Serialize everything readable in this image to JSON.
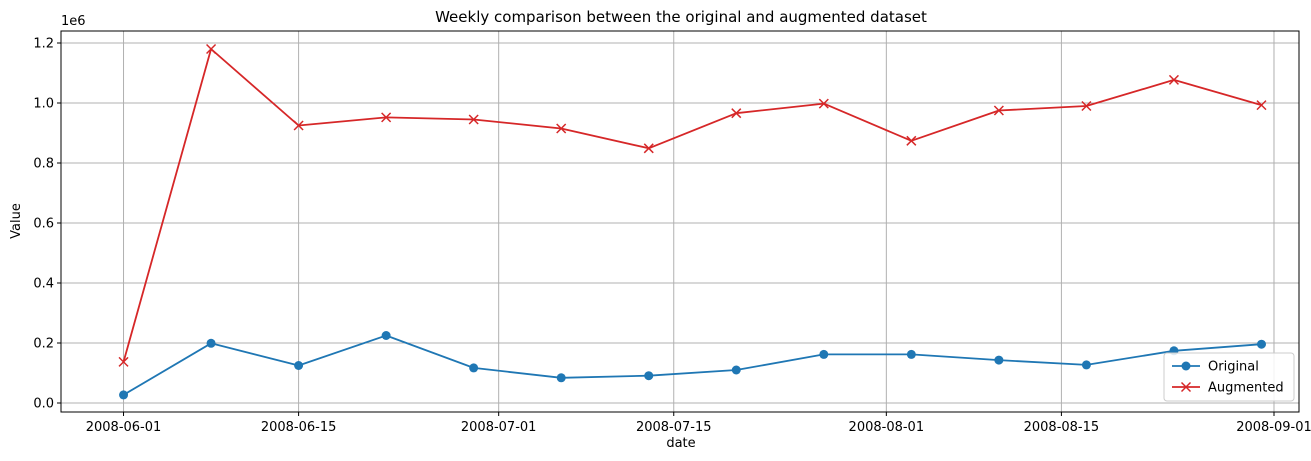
{
  "chart_data": {
    "type": "line",
    "title": "Weekly comparison between the original and augmented dataset",
    "xlabel": "date",
    "ylabel": "Value",
    "y_offset_label": "1e6",
    "xlim": [
      "2008-05-27",
      "2008-09-03"
    ],
    "ylim": [
      -0.03,
      1.24
    ],
    "grid": true,
    "legend_position": "lower-right",
    "x_ticks": [
      "2008-06-01",
      "2008-06-15",
      "2008-07-01",
      "2008-07-15",
      "2008-08-01",
      "2008-08-15",
      "2008-09-01"
    ],
    "y_ticks": [
      "0.0",
      "0.2",
      "0.4",
      "0.6",
      "0.8",
      "1.0",
      "1.2"
    ],
    "x": [
      "2008-06-01",
      "2008-06-08",
      "2008-06-15",
      "2008-06-22",
      "2008-06-29",
      "2008-07-06",
      "2008-07-13",
      "2008-07-20",
      "2008-07-27",
      "2008-08-03",
      "2008-08-10",
      "2008-08-17",
      "2008-08-24",
      "2008-08-31"
    ],
    "series": [
      {
        "name": "Original",
        "color": "#1f77b4",
        "marker": "circle",
        "values": [
          0.027,
          0.199,
          0.125,
          0.225,
          0.117,
          0.084,
          0.091,
          0.11,
          0.162,
          0.162,
          0.143,
          0.127,
          0.174,
          0.196
        ]
      },
      {
        "name": "Augmented",
        "color": "#d62728",
        "marker": "x",
        "values": [
          0.137,
          1.18,
          0.925,
          0.952,
          0.945,
          0.915,
          0.849,
          0.966,
          0.998,
          0.874,
          0.975,
          0.99,
          1.077,
          0.993
        ]
      }
    ]
  }
}
